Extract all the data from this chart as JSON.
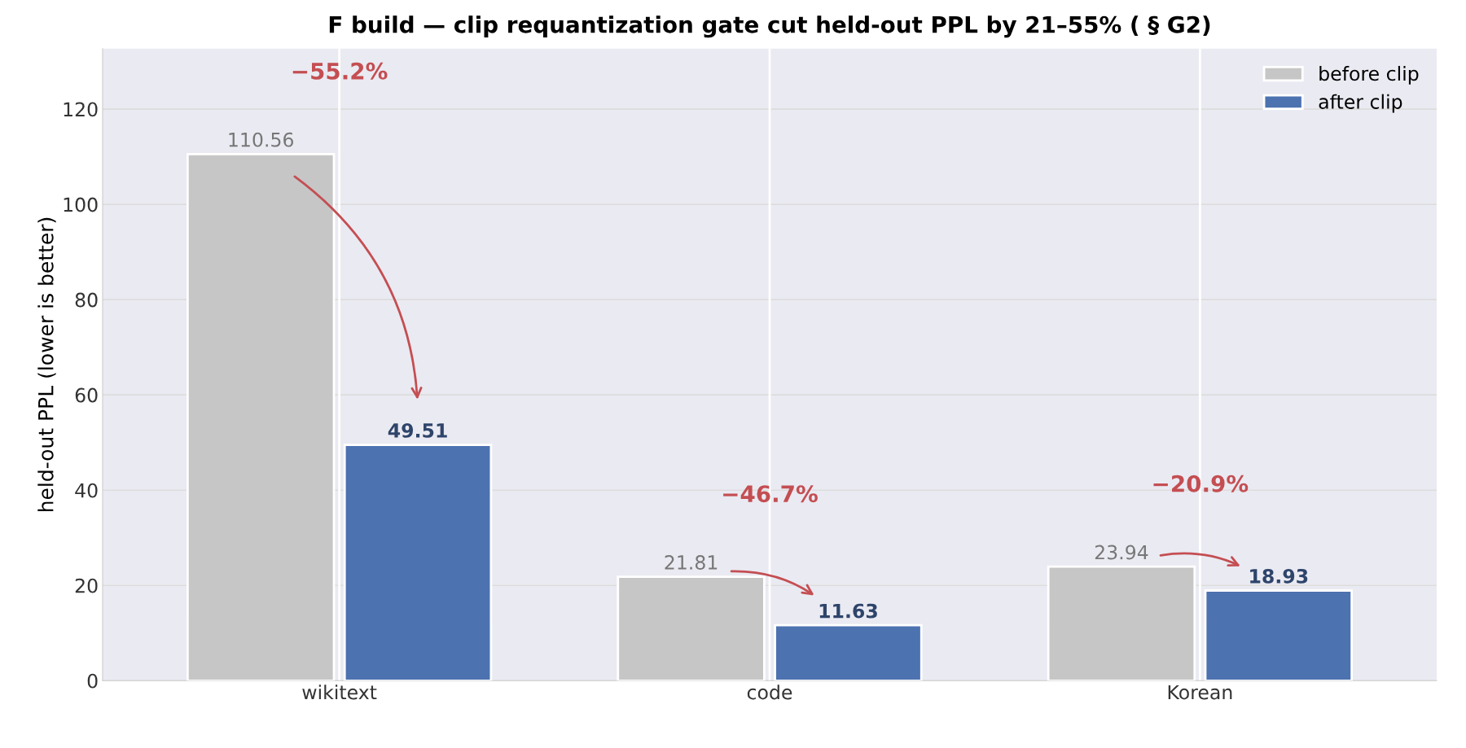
{
  "chart_data": {
    "type": "bar",
    "title": "F build — clip requantization gate cut held-out PPL by 21–55% ( § G2)",
    "ylabel": "held-out PPL (lower is better)",
    "categories": [
      "wikitext",
      "code",
      "Korean"
    ],
    "series": [
      {
        "name": "before clip",
        "color": "#c6c6c6",
        "values": [
          110.56,
          21.81,
          23.94
        ]
      },
      {
        "name": "after clip",
        "color": "#4c72b0",
        "values": [
          49.51,
          11.63,
          18.93
        ]
      }
    ],
    "annotations": [
      "−55.2%",
      "−46.7%",
      "−20.9%"
    ],
    "ylim": [
      0,
      132.7
    ],
    "yticks": [
      0,
      20,
      40,
      60,
      80,
      100,
      120
    ],
    "data_labels": true,
    "grid": true,
    "legend": "top right"
  }
}
